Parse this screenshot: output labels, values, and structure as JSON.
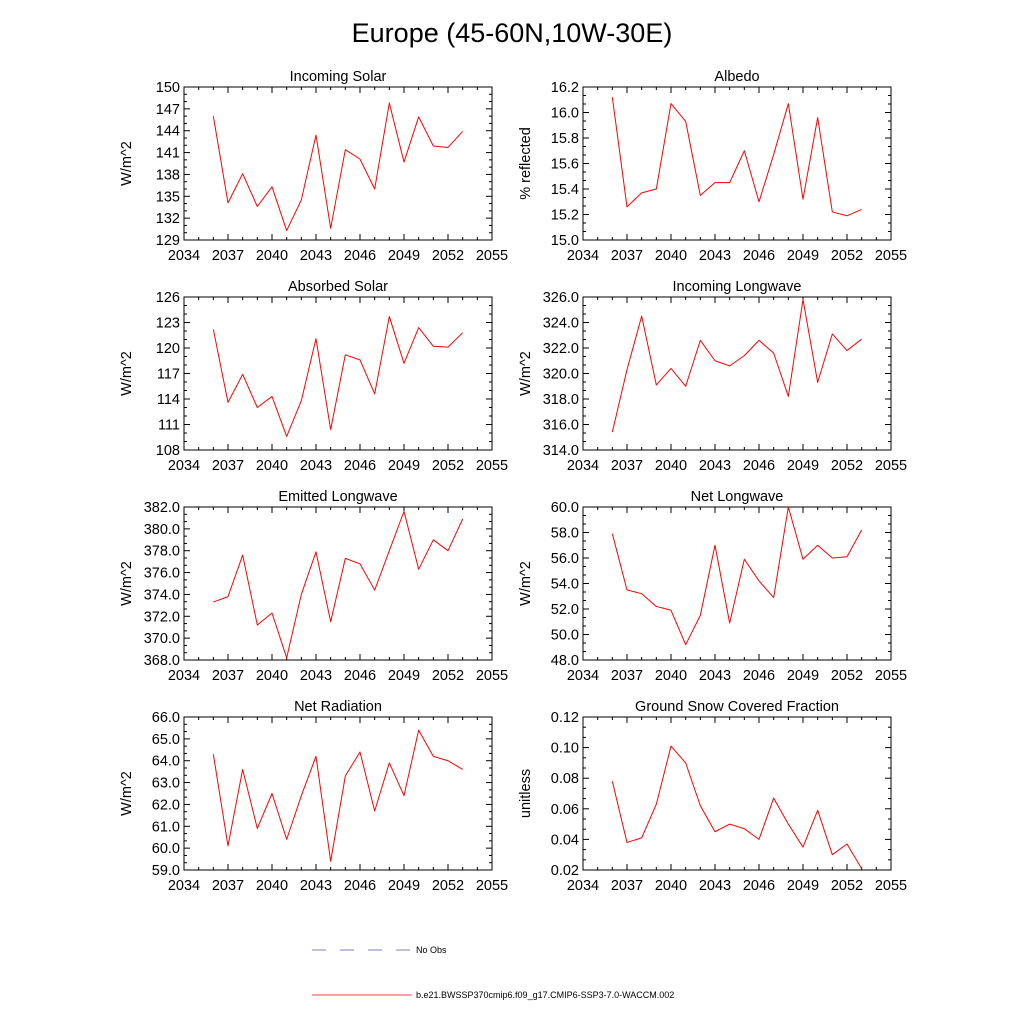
{
  "figure": {
    "title": "Europe (45-60N,10W-30E)",
    "series_color": "#ff0000",
    "obs_color": "#5a5aa8",
    "legend": {
      "obs_label": "No Obs",
      "model_label": "b.e21.BWSSP370cmip6.f09_g17.CMIP6-SSP3-7.0-WACCM.002"
    }
  },
  "chart_data": [
    {
      "type": "line",
      "title": "Incoming Solar",
      "xlabel": "",
      "ylabel": "W/m^2",
      "xlim": [
        2034,
        2055
      ],
      "xticks": [
        2034,
        2037,
        2040,
        2043,
        2046,
        2049,
        2052,
        2055
      ],
      "xtick_labels": [
        "2034",
        "2037",
        "2040",
        "2043",
        "2046",
        "2049",
        "2052",
        "2055"
      ],
      "ylim": [
        129,
        150
      ],
      "yticks": [
        129,
        132,
        135,
        138,
        141,
        144,
        147,
        150
      ],
      "ytick_labels": [
        "129",
        "132",
        "135",
        "138",
        "141",
        "144",
        "147",
        "150"
      ],
      "series": [
        {
          "name": "b.e21.BWSSP370cmip6.f09_g17.CMIP6-SSP3-7.0-WACCM.002",
          "x": [
            2036,
            2037,
            2038,
            2039,
            2040,
            2041,
            2042,
            2043,
            2044,
            2045,
            2046,
            2047,
            2048,
            2049,
            2050,
            2051,
            2052,
            2053
          ],
          "values": [
            146.0,
            134.1,
            138.1,
            133.6,
            136.3,
            130.3,
            134.5,
            143.4,
            130.6,
            141.4,
            140.1,
            136.0,
            147.8,
            139.7,
            145.9,
            141.9,
            141.7,
            143.9
          ]
        }
      ]
    },
    {
      "type": "line",
      "title": "Albedo",
      "xlabel": "",
      "ylabel": "% reflected",
      "xlim": [
        2034,
        2055
      ],
      "xticks": [
        2034,
        2037,
        2040,
        2043,
        2046,
        2049,
        2052,
        2055
      ],
      "xtick_labels": [
        "2034",
        "2037",
        "2040",
        "2043",
        "2046",
        "2049",
        "2052",
        "2055"
      ],
      "ylim": [
        15.0,
        16.2
      ],
      "yticks": [
        15.0,
        15.2,
        15.4,
        15.6,
        15.8,
        16.0,
        16.2
      ],
      "ytick_labels": [
        "15.0",
        "15.2",
        "15.4",
        "15.6",
        "15.8",
        "16.0",
        "16.2"
      ],
      "series": [
        {
          "name": "b.e21.BWSSP370cmip6.f09_g17.CMIP6-SSP3-7.0-WACCM.002",
          "x": [
            2036,
            2037,
            2038,
            2039,
            2040,
            2041,
            2042,
            2043,
            2044,
            2045,
            2046,
            2047,
            2048,
            2049,
            2050,
            2051,
            2052,
            2053
          ],
          "values": [
            16.12,
            15.26,
            15.37,
            15.4,
            16.07,
            15.93,
            15.35,
            15.45,
            15.45,
            15.7,
            15.3,
            15.67,
            16.07,
            15.32,
            15.96,
            15.22,
            15.19,
            15.24
          ]
        }
      ]
    },
    {
      "type": "line",
      "title": "Absorbed Solar",
      "xlabel": "",
      "ylabel": "W/m^2",
      "xlim": [
        2034,
        2055
      ],
      "xticks": [
        2034,
        2037,
        2040,
        2043,
        2046,
        2049,
        2052,
        2055
      ],
      "xtick_labels": [
        "2034",
        "2037",
        "2040",
        "2043",
        "2046",
        "2049",
        "2052",
        "2055"
      ],
      "ylim": [
        108,
        126
      ],
      "yticks": [
        108,
        111,
        114,
        117,
        120,
        123,
        126
      ],
      "ytick_labels": [
        "108",
        "111",
        "114",
        "117",
        "120",
        "123",
        "126"
      ],
      "series": [
        {
          "name": "b.e21.BWSSP370cmip6.f09_g17.CMIP6-SSP3-7.0-WACCM.002",
          "x": [
            2036,
            2037,
            2038,
            2039,
            2040,
            2041,
            2042,
            2043,
            2044,
            2045,
            2046,
            2047,
            2048,
            2049,
            2050,
            2051,
            2052,
            2053
          ],
          "values": [
            122.2,
            113.6,
            116.9,
            113.0,
            114.3,
            109.6,
            113.8,
            121.1,
            110.4,
            119.2,
            118.6,
            114.6,
            123.7,
            118.2,
            122.4,
            120.2,
            120.1,
            121.8
          ]
        }
      ]
    },
    {
      "type": "line",
      "title": "Incoming Longwave",
      "xlabel": "",
      "ylabel": "W/m^2",
      "xlim": [
        2034,
        2055
      ],
      "xticks": [
        2034,
        2037,
        2040,
        2043,
        2046,
        2049,
        2052,
        2055
      ],
      "xtick_labels": [
        "2034",
        "2037",
        "2040",
        "2043",
        "2046",
        "2049",
        "2052",
        "2055"
      ],
      "ylim": [
        314.0,
        326.0
      ],
      "yticks": [
        314.0,
        316.0,
        318.0,
        320.0,
        322.0,
        324.0,
        326.0
      ],
      "ytick_labels": [
        "314.0",
        "316.0",
        "318.0",
        "320.0",
        "322.0",
        "324.0",
        "326.0"
      ],
      "series": [
        {
          "name": "b.e21.BWSSP370cmip6.f09_g17.CMIP6-SSP3-7.0-WACCM.002",
          "x": [
            2036,
            2037,
            2038,
            2039,
            2040,
            2041,
            2042,
            2043,
            2044,
            2045,
            2046,
            2047,
            2048,
            2049,
            2050,
            2051,
            2052,
            2053
          ],
          "values": [
            315.4,
            320.3,
            324.5,
            319.1,
            320.4,
            319.0,
            322.6,
            321.0,
            320.6,
            321.4,
            322.6,
            321.6,
            318.2,
            325.8,
            319.3,
            323.1,
            321.8,
            322.7
          ]
        }
      ]
    },
    {
      "type": "line",
      "title": "Emitted Longwave",
      "xlabel": "",
      "ylabel": "W/m^2",
      "xlim": [
        2034,
        2055
      ],
      "xticks": [
        2034,
        2037,
        2040,
        2043,
        2046,
        2049,
        2052,
        2055
      ],
      "xtick_labels": [
        "2034",
        "2037",
        "2040",
        "2043",
        "2046",
        "2049",
        "2052",
        "2055"
      ],
      "ylim": [
        368.0,
        382.0
      ],
      "yticks": [
        368.0,
        370.0,
        372.0,
        374.0,
        376.0,
        378.0,
        380.0,
        382.0
      ],
      "ytick_labels": [
        "368.0",
        "370.0",
        "372.0",
        "374.0",
        "376.0",
        "378.0",
        "380.0",
        "382.0"
      ],
      "series": [
        {
          "name": "b.e21.BWSSP370cmip6.f09_g17.CMIP6-SSP3-7.0-WACCM.002",
          "x": [
            2036,
            2037,
            2038,
            2039,
            2040,
            2041,
            2042,
            2043,
            2044,
            2045,
            2046,
            2047,
            2048,
            2049,
            2050,
            2051,
            2052,
            2053
          ],
          "values": [
            373.3,
            373.8,
            377.6,
            371.2,
            372.3,
            368.2,
            374.0,
            377.9,
            371.5,
            377.3,
            376.8,
            374.4,
            378.0,
            381.6,
            376.3,
            379.0,
            378.0,
            380.9
          ]
        }
      ]
    },
    {
      "type": "line",
      "title": "Net Longwave",
      "xlabel": "",
      "ylabel": "W/m^2",
      "xlim": [
        2034,
        2055
      ],
      "xticks": [
        2034,
        2037,
        2040,
        2043,
        2046,
        2049,
        2052,
        2055
      ],
      "xtick_labels": [
        "2034",
        "2037",
        "2040",
        "2043",
        "2046",
        "2049",
        "2052",
        "2055"
      ],
      "ylim": [
        48.0,
        60.0
      ],
      "yticks": [
        48.0,
        50.0,
        52.0,
        54.0,
        56.0,
        58.0,
        60.0
      ],
      "ytick_labels": [
        "48.0",
        "50.0",
        "52.0",
        "54.0",
        "56.0",
        "58.0",
        "60.0"
      ],
      "series": [
        {
          "name": "b.e21.BWSSP370cmip6.f09_g17.CMIP6-SSP3-7.0-WACCM.002",
          "x": [
            2036,
            2037,
            2038,
            2039,
            2040,
            2041,
            2042,
            2043,
            2044,
            2045,
            2046,
            2047,
            2048,
            2049,
            2050,
            2051,
            2052,
            2053
          ],
          "values": [
            57.9,
            53.5,
            53.2,
            52.2,
            51.9,
            49.2,
            51.5,
            57.0,
            50.9,
            55.9,
            54.2,
            52.9,
            60.0,
            55.9,
            57.0,
            56.0,
            56.1,
            58.2
          ]
        }
      ]
    },
    {
      "type": "line",
      "title": "Net Radiation",
      "xlabel": "",
      "ylabel": "W/m^2",
      "xlim": [
        2034,
        2055
      ],
      "xticks": [
        2034,
        2037,
        2040,
        2043,
        2046,
        2049,
        2052,
        2055
      ],
      "xtick_labels": [
        "2034",
        "2037",
        "2040",
        "2043",
        "2046",
        "2049",
        "2052",
        "2055"
      ],
      "ylim": [
        59.0,
        66.0
      ],
      "yticks": [
        59.0,
        60.0,
        61.0,
        62.0,
        63.0,
        64.0,
        65.0,
        66.0
      ],
      "ytick_labels": [
        "59.0",
        "60.0",
        "61.0",
        "62.0",
        "63.0",
        "64.0",
        "65.0",
        "66.0"
      ],
      "series": [
        {
          "name": "b.e21.BWSSP370cmip6.f09_g17.CMIP6-SSP3-7.0-WACCM.002",
          "x": [
            2036,
            2037,
            2038,
            2039,
            2040,
            2041,
            2042,
            2043,
            2044,
            2045,
            2046,
            2047,
            2048,
            2049,
            2050,
            2051,
            2052,
            2053
          ],
          "values": [
            64.3,
            60.1,
            63.6,
            60.9,
            62.5,
            60.4,
            62.4,
            64.2,
            59.4,
            63.3,
            64.4,
            61.7,
            63.9,
            62.4,
            65.4,
            64.2,
            64.0,
            63.6
          ]
        }
      ]
    },
    {
      "type": "line",
      "title": "Ground Snow Covered Fraction",
      "xlabel": "",
      "ylabel": "unitless",
      "xlim": [
        2034,
        2055
      ],
      "xticks": [
        2034,
        2037,
        2040,
        2043,
        2046,
        2049,
        2052,
        2055
      ],
      "xtick_labels": [
        "2034",
        "2037",
        "2040",
        "2043",
        "2046",
        "2049",
        "2052",
        "2055"
      ],
      "ylim": [
        0.02,
        0.12
      ],
      "yticks": [
        0.02,
        0.04,
        0.06,
        0.08,
        0.1,
        0.12
      ],
      "ytick_labels": [
        "0.02",
        "0.04",
        "0.06",
        "0.08",
        "0.10",
        "0.12"
      ],
      "series": [
        {
          "name": "b.e21.BWSSP370cmip6.f09_g17.CMIP6-SSP3-7.0-WACCM.002",
          "x": [
            2036,
            2037,
            2038,
            2039,
            2040,
            2041,
            2042,
            2043,
            2044,
            2045,
            2046,
            2047,
            2048,
            2049,
            2050,
            2051,
            2052,
            2053
          ],
          "values": [
            0.078,
            0.038,
            0.041,
            0.063,
            0.101,
            0.09,
            0.062,
            0.045,
            0.05,
            0.047,
            0.04,
            0.067,
            0.05,
            0.035,
            0.059,
            0.03,
            0.037,
            0.021
          ]
        }
      ]
    }
  ]
}
